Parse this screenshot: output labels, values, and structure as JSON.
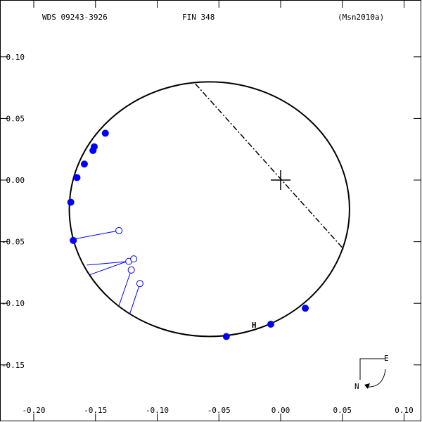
{
  "header": {
    "left": "WDS 09243-3926",
    "center": "FIN 348",
    "right": "(Msn2010a)"
  },
  "orientation": {
    "east": "E",
    "north": "N"
  },
  "colors": {
    "orbit": "#000000",
    "measurement": "#0000ff",
    "marker": "#ff0000"
  },
  "chart_data": {
    "type": "scatter",
    "title": "FIN 348",
    "xlim": [
      -0.2,
      0.1
    ],
    "ylim": [
      -0.15,
      0.1
    ],
    "x_ticks": [
      -0.2,
      -0.15,
      -0.1,
      -0.05,
      0.0,
      0.05,
      0.1
    ],
    "x_tick_labels": [
      "-0.20",
      "-0.15",
      "-0.10",
      "-0.05",
      "0.00",
      "0.05",
      "0.10"
    ],
    "y_ticks": [
      0.1,
      0.05,
      0.0,
      -0.05,
      -0.1,
      -0.15
    ],
    "y_tick_labels": [
      "0.10",
      "0.05",
      "0.00",
      "-0.05",
      "-0.10",
      "-0.15"
    ],
    "orbit": {
      "center": [
        -0.0577,
        -0.0236
      ],
      "semi_axes": [
        0.1135,
        0.1033
      ],
      "line_of_nodes": [
        [
          -0.069,
          0.078
        ],
        [
          0.051,
          -0.056
        ]
      ]
    },
    "primary": [
      0.0,
      0.0
    ],
    "filled_points": [
      {
        "x": -0.142,
        "y": 0.038
      },
      {
        "x": -0.151,
        "y": 0.027
      },
      {
        "x": -0.152,
        "y": 0.024
      },
      {
        "x": -0.159,
        "y": 0.013
      },
      {
        "x": -0.165,
        "y": 0.002
      },
      {
        "x": -0.17,
        "y": -0.018
      },
      {
        "x": -0.168,
        "y": -0.049
      },
      {
        "x": 0.02,
        "y": -0.104
      },
      {
        "x": -0.008,
        "y": -0.117
      },
      {
        "x": -0.044,
        "y": -0.127
      }
    ],
    "open_points": [
      {
        "x": -0.131,
        "y": -0.041,
        "ox": -0.168,
        "oy": -0.048
      },
      {
        "x": -0.123,
        "y": -0.066,
        "ox": -0.157,
        "oy": -0.069
      },
      {
        "x": -0.119,
        "y": -0.064,
        "ox": -0.155,
        "oy": -0.077
      },
      {
        "x": -0.121,
        "y": -0.073,
        "ox": -0.131,
        "oy": -0.102
      },
      {
        "x": -0.114,
        "y": -0.084,
        "ox": -0.122,
        "oy": -0.108
      }
    ],
    "marker_label": {
      "text": "H",
      "x": -0.02,
      "y": -0.117
    }
  }
}
